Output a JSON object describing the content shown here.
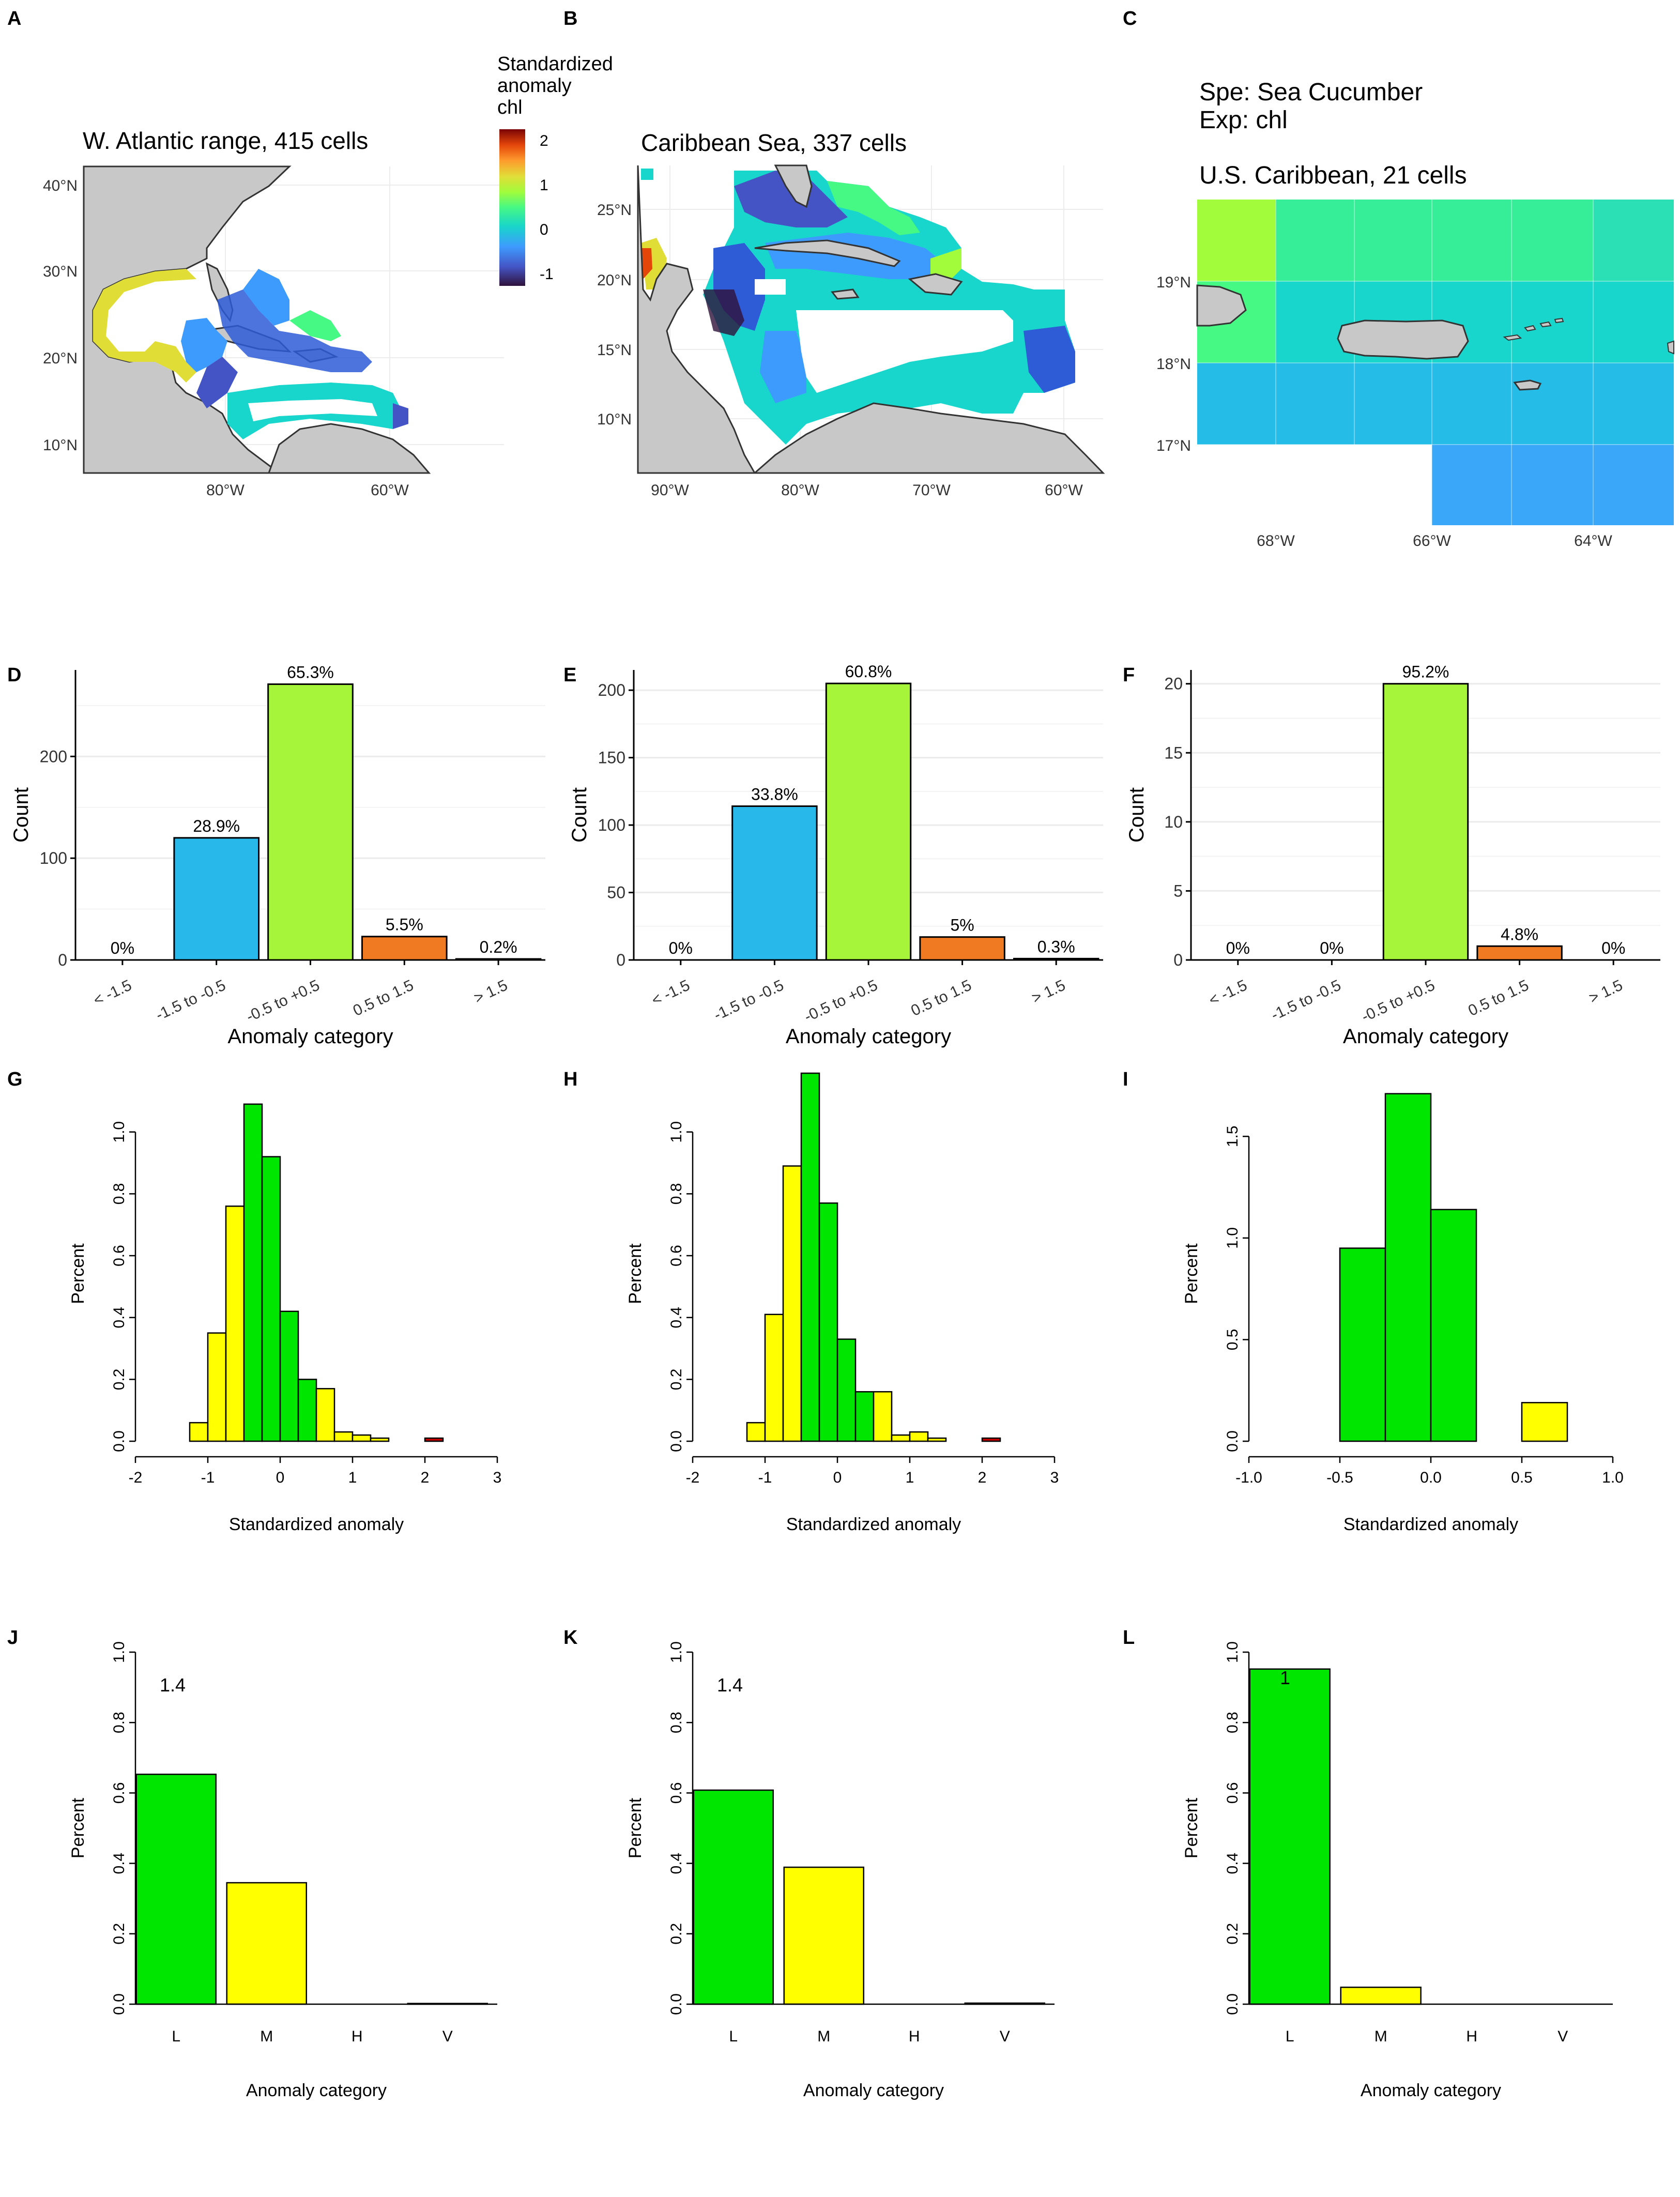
{
  "figure": {
    "species_text": "Spe: Sea Cucumber",
    "exposure_text": "Exp: chl"
  },
  "colors": {
    "land": "#c8c8c8",
    "coast": "#333333",
    "bar_dark_blue": "#2e5bd6",
    "bar_blue": "#29b8ea",
    "bar_green": "#a6f53a",
    "bar_orange": "#f07a22",
    "bar_red": "#a00000",
    "hist_green": "#00e600",
    "hist_yellow": "#ffff00",
    "hist_red": "#cc0000"
  },
  "chart_data": [
    {
      "panel": "A",
      "type": "heatmap",
      "map": true,
      "title": "W. Atlantic range, 415 cells",
      "x_ticks": [
        "80°W",
        "60°W"
      ],
      "y_ticks": [
        "40°N",
        "30°N",
        "20°N",
        "10°N"
      ],
      "legend": {
        "title": [
          "Standardized",
          "anomaly",
          "chl"
        ],
        "ticks": [
          "2",
          "1",
          "0",
          "-1"
        ]
      }
    },
    {
      "panel": "B",
      "type": "heatmap",
      "map": true,
      "title": "Caribbean Sea, 337 cells",
      "x_ticks": [
        "90°W",
        "80°W",
        "70°W",
        "60°W"
      ],
      "y_ticks": [
        "25°N",
        "20°N",
        "15°N",
        "10°N"
      ]
    },
    {
      "panel": "C",
      "type": "heatmap",
      "map": true,
      "title": "U.S. Caribbean, 21 cells",
      "x_ticks": [
        "68°W",
        "66°W",
        "64°W"
      ],
      "y_ticks": [
        "19°N",
        "18°N",
        "17°N"
      ]
    },
    {
      "panel": "D",
      "type": "bar",
      "categories": [
        "< -1.5",
        "-1.5 to -0.5",
        "-0.5 to +0.5",
        "0.5 to 1.5",
        "> 1.5"
      ],
      "values": [
        0,
        120,
        271,
        23,
        1
      ],
      "labels": [
        "0%",
        "28.9%",
        "65.3%",
        "5.5%",
        "0.2%"
      ],
      "xlabel": "Anomaly category",
      "ylabel": "Count",
      "ylim": [
        0,
        285
      ],
      "yticks": [
        0,
        100,
        200
      ]
    },
    {
      "panel": "E",
      "type": "bar",
      "categories": [
        "< -1.5",
        "-1.5 to -0.5",
        "-0.5 to +0.5",
        "0.5 to 1.5",
        "> 1.5"
      ],
      "values": [
        0,
        114,
        205,
        17,
        1
      ],
      "labels": [
        "0%",
        "33.8%",
        "60.8%",
        "5%",
        "0.3%"
      ],
      "xlabel": "Anomaly category",
      "ylabel": "Count",
      "ylim": [
        0,
        215
      ],
      "yticks": [
        0,
        50,
        100,
        150,
        200
      ]
    },
    {
      "panel": "F",
      "type": "bar",
      "categories": [
        "< -1.5",
        "-1.5 to -0.5",
        "-0.5 to +0.5",
        "0.5 to 1.5",
        "> 1.5"
      ],
      "values": [
        0,
        0,
        20,
        1,
        0
      ],
      "labels": [
        "0%",
        "0%",
        "95.2%",
        "4.8%",
        "0%"
      ],
      "xlabel": "Anomaly category",
      "ylabel": "Count",
      "ylim": [
        0,
        21
      ],
      "yticks": [
        0,
        5,
        10,
        15,
        20
      ]
    },
    {
      "panel": "G",
      "type": "bar",
      "histogram": true,
      "xlabel": "Standardized anomaly",
      "ylabel": "Percent",
      "xlim": [
        -2,
        3
      ],
      "xticks": [
        -2,
        -1,
        0,
        1,
        2,
        3
      ],
      "ylim": [
        0,
        1.15
      ],
      "yticks": [
        0.0,
        0.2,
        0.4,
        0.6,
        0.8,
        1.0
      ],
      "bin_width": 0.25,
      "bins": [
        {
          "x": -1.25,
          "value": 0.06,
          "color": "yellow"
        },
        {
          "x": -1.0,
          "value": 0.35,
          "color": "yellow"
        },
        {
          "x": -0.75,
          "value": 0.76,
          "color": "yellow"
        },
        {
          "x": -0.5,
          "value": 1.09,
          "color": "green"
        },
        {
          "x": -0.25,
          "value": 0.92,
          "color": "green"
        },
        {
          "x": 0.0,
          "value": 0.42,
          "color": "green"
        },
        {
          "x": 0.25,
          "value": 0.2,
          "color": "green"
        },
        {
          "x": 0.5,
          "value": 0.17,
          "color": "yellow"
        },
        {
          "x": 0.75,
          "value": 0.03,
          "color": "yellow"
        },
        {
          "x": 1.0,
          "value": 0.02,
          "color": "yellow"
        },
        {
          "x": 1.25,
          "value": 0.01,
          "color": "yellow"
        },
        {
          "x": 2.0,
          "value": 0.01,
          "color": "red"
        }
      ]
    },
    {
      "panel": "H",
      "type": "bar",
      "histogram": true,
      "xlabel": "Standardized anomaly",
      "ylabel": "Percent",
      "xlim": [
        -2,
        3
      ],
      "xticks": [
        -2,
        -1,
        0,
        1,
        2,
        3
      ],
      "ylim": [
        0,
        1.15
      ],
      "yticks": [
        0.0,
        0.2,
        0.4,
        0.6,
        0.8,
        1.0
      ],
      "bin_width": 0.25,
      "bins": [
        {
          "x": -1.25,
          "value": 0.06,
          "color": "yellow"
        },
        {
          "x": -1.0,
          "value": 0.41,
          "color": "yellow"
        },
        {
          "x": -0.75,
          "value": 0.89,
          "color": "yellow"
        },
        {
          "x": -0.5,
          "value": 1.19,
          "color": "green"
        },
        {
          "x": -0.25,
          "value": 0.77,
          "color": "green"
        },
        {
          "x": 0.0,
          "value": 0.33,
          "color": "green"
        },
        {
          "x": 0.25,
          "value": 0.16,
          "color": "green"
        },
        {
          "x": 0.5,
          "value": 0.16,
          "color": "yellow"
        },
        {
          "x": 0.75,
          "value": 0.02,
          "color": "yellow"
        },
        {
          "x": 1.0,
          "value": 0.03,
          "color": "yellow"
        },
        {
          "x": 1.25,
          "value": 0.01,
          "color": "yellow"
        },
        {
          "x": 2.0,
          "value": 0.01,
          "color": "red"
        }
      ]
    },
    {
      "panel": "I",
      "type": "bar",
      "histogram": true,
      "xlabel": "Standardized anomaly",
      "ylabel": "Percent",
      "xlim": [
        -1.0,
        1.0
      ],
      "xticks": [
        -1.0,
        -0.5,
        0.0,
        0.5,
        1.0
      ],
      "ylim": [
        0,
        1.75
      ],
      "yticks": [
        0.0,
        0.5,
        1.0,
        1.5
      ],
      "bin_width": 0.25,
      "bins": [
        {
          "x": -0.5,
          "value": 0.95,
          "color": "green"
        },
        {
          "x": -0.25,
          "value": 1.71,
          "color": "green"
        },
        {
          "x": 0.0,
          "value": 1.14,
          "color": "green"
        },
        {
          "x": 0.5,
          "value": 0.19,
          "color": "yellow"
        }
      ]
    },
    {
      "panel": "J",
      "type": "bar",
      "categories": [
        "L",
        "M",
        "H",
        "V"
      ],
      "values": [
        0.653,
        0.345,
        0.0,
        0.002
      ],
      "colors": [
        "green",
        "yellow",
        "green",
        "green"
      ],
      "annotation": "1.4",
      "xlabel": "Anomaly category",
      "ylabel": "Percent",
      "ylim": [
        0,
        1.0
      ],
      "yticks": [
        0.0,
        0.2,
        0.4,
        0.6,
        0.8,
        1.0
      ]
    },
    {
      "panel": "K",
      "type": "bar",
      "categories": [
        "L",
        "M",
        "H",
        "V"
      ],
      "values": [
        0.608,
        0.389,
        0.0,
        0.003
      ],
      "colors": [
        "green",
        "yellow",
        "green",
        "green"
      ],
      "annotation": "1.4",
      "xlabel": "Anomaly category",
      "ylabel": "Percent",
      "ylim": [
        0,
        1.0
      ],
      "yticks": [
        0.0,
        0.2,
        0.4,
        0.6,
        0.8,
        1.0
      ]
    },
    {
      "panel": "L",
      "type": "bar",
      "categories": [
        "L",
        "M",
        "H",
        "V"
      ],
      "values": [
        0.952,
        0.048,
        0.0,
        0.0
      ],
      "colors": [
        "green",
        "yellow",
        "green",
        "green"
      ],
      "annotation": "1",
      "xlabel": "Anomaly category",
      "ylabel": "Percent",
      "ylim": [
        0,
        1.0
      ],
      "yticks": [
        0.0,
        0.2,
        0.4,
        0.6,
        0.8,
        1.0
      ]
    }
  ]
}
